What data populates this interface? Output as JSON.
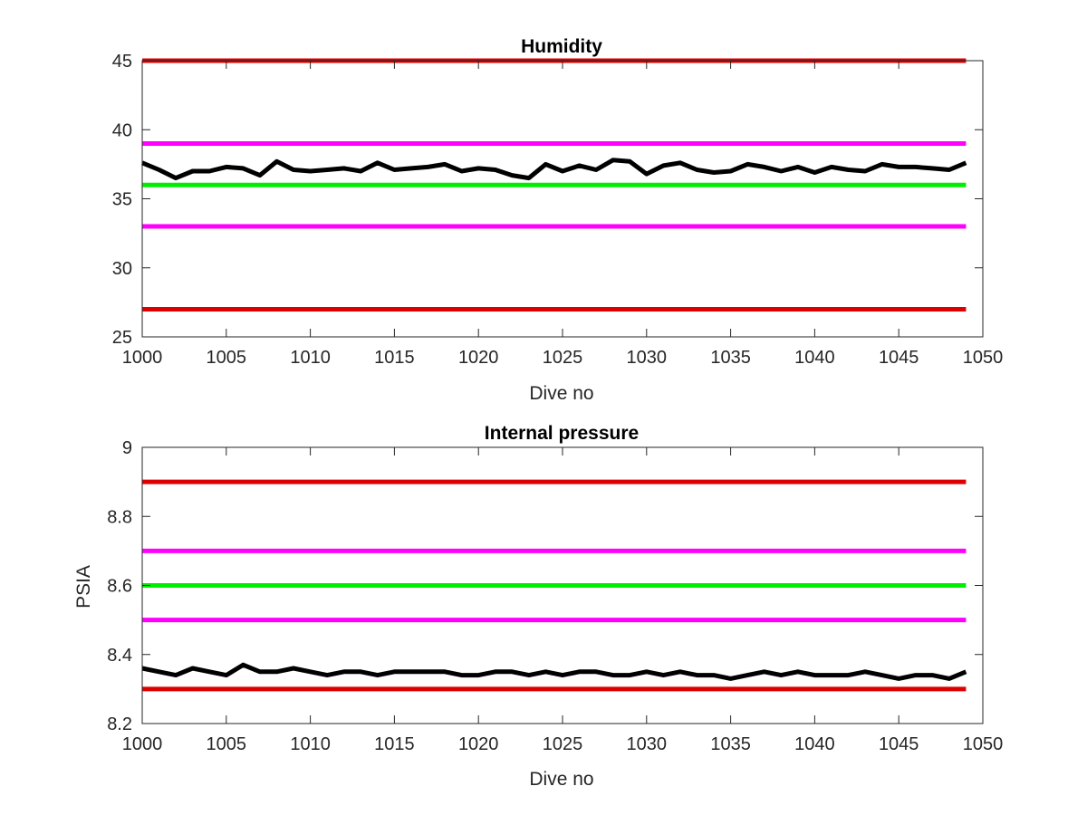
{
  "chart_data": [
    {
      "type": "line",
      "title": "Humidity",
      "xlabel": "Dive no",
      "ylabel": "",
      "xlim": [
        1000,
        1050
      ],
      "ylim": [
        25,
        45
      ],
      "x_ticks": [
        "1000",
        "1005",
        "1010",
        "1015",
        "1020",
        "1025",
        "1030",
        "1035",
        "1040",
        "1045",
        "1050"
      ],
      "y_ticks": [
        "25",
        "30",
        "35",
        "40",
        "45"
      ],
      "grid": false,
      "legend": "none",
      "thresholds": [
        {
          "value": 45,
          "color": "#dd0000"
        },
        {
          "value": 39,
          "color": "#ff00ff"
        },
        {
          "value": 36,
          "color": "#00ee00"
        },
        {
          "value": 33,
          "color": "#ff00ff"
        },
        {
          "value": 27,
          "color": "#dd0000"
        }
      ],
      "series": [
        {
          "color": "#000000",
          "x": [
            1000,
            1001,
            1002,
            1003,
            1004,
            1005,
            1006,
            1007,
            1008,
            1009,
            1010,
            1011,
            1012,
            1013,
            1014,
            1015,
            1016,
            1017,
            1018,
            1019,
            1020,
            1021,
            1022,
            1023,
            1024,
            1025,
            1026,
            1027,
            1028,
            1029,
            1030,
            1031,
            1032,
            1033,
            1034,
            1035,
            1036,
            1037,
            1038,
            1039,
            1040,
            1041,
            1042,
            1043,
            1044,
            1045,
            1046,
            1047,
            1048,
            1049
          ],
          "values": [
            37.6,
            37.1,
            36.5,
            37.0,
            37.0,
            37.3,
            37.2,
            36.7,
            37.7,
            37.1,
            37.0,
            37.1,
            37.2,
            37.0,
            37.6,
            37.1,
            37.2,
            37.3,
            37.5,
            37.0,
            37.2,
            37.1,
            36.7,
            36.5,
            37.5,
            37.0,
            37.4,
            37.1,
            37.8,
            37.7,
            36.8,
            37.4,
            37.6,
            37.1,
            36.9,
            37.0,
            37.5,
            37.3,
            37.0,
            37.3,
            36.9,
            37.3,
            37.1,
            37.0,
            37.5,
            37.3,
            37.3,
            37.2,
            37.1,
            37.6
          ]
        }
      ]
    },
    {
      "type": "line",
      "title": "Internal pressure",
      "xlabel": "Dive no",
      "ylabel": "PSIA",
      "xlim": [
        1000,
        1050
      ],
      "ylim": [
        8.2,
        9.0
      ],
      "x_ticks": [
        "1000",
        "1005",
        "1010",
        "1015",
        "1020",
        "1025",
        "1030",
        "1035",
        "1040",
        "1045",
        "1050"
      ],
      "y_ticks": [
        "8.2",
        "8.4",
        "8.6",
        "8.8",
        "9"
      ],
      "grid": false,
      "legend": "none",
      "thresholds": [
        {
          "value": 8.9,
          "color": "#dd0000"
        },
        {
          "value": 8.7,
          "color": "#ff00ff"
        },
        {
          "value": 8.6,
          "color": "#00ee00"
        },
        {
          "value": 8.5,
          "color": "#ff00ff"
        },
        {
          "value": 8.3,
          "color": "#dd0000"
        }
      ],
      "series": [
        {
          "color": "#000000",
          "x": [
            1000,
            1001,
            1002,
            1003,
            1004,
            1005,
            1006,
            1007,
            1008,
            1009,
            1010,
            1011,
            1012,
            1013,
            1014,
            1015,
            1016,
            1017,
            1018,
            1019,
            1020,
            1021,
            1022,
            1023,
            1024,
            1025,
            1026,
            1027,
            1028,
            1029,
            1030,
            1031,
            1032,
            1033,
            1034,
            1035,
            1036,
            1037,
            1038,
            1039,
            1040,
            1041,
            1042,
            1043,
            1044,
            1045,
            1046,
            1047,
            1048,
            1049
          ],
          "values": [
            8.36,
            8.35,
            8.34,
            8.36,
            8.35,
            8.34,
            8.37,
            8.35,
            8.35,
            8.36,
            8.35,
            8.34,
            8.35,
            8.35,
            8.34,
            8.35,
            8.35,
            8.35,
            8.35,
            8.34,
            8.34,
            8.35,
            8.35,
            8.34,
            8.35,
            8.34,
            8.35,
            8.35,
            8.34,
            8.34,
            8.35,
            8.34,
            8.35,
            8.34,
            8.34,
            8.33,
            8.34,
            8.35,
            8.34,
            8.35,
            8.34,
            8.34,
            8.34,
            8.35,
            8.34,
            8.33,
            8.34,
            8.34,
            8.33,
            8.35
          ]
        }
      ]
    }
  ]
}
